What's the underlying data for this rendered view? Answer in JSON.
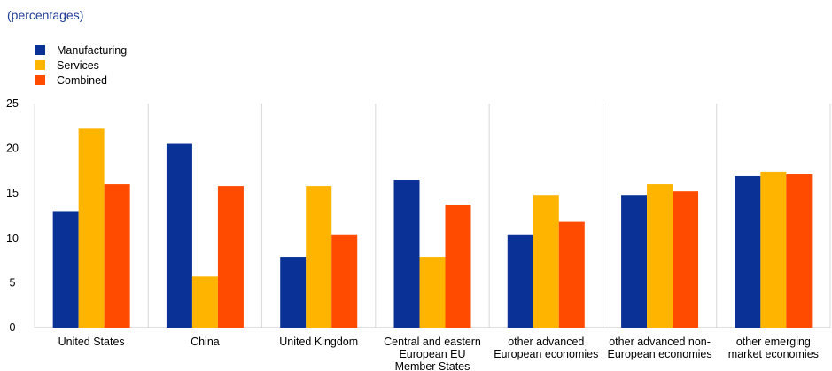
{
  "subtitle": "(percentages)",
  "chart_data": {
    "type": "bar",
    "title": "",
    "subtitle": "(percentages)",
    "xlabel": "",
    "ylabel": "",
    "ylim": [
      0,
      25
    ],
    "yticks": [
      "0",
      "5",
      "10",
      "15",
      "20",
      "25"
    ],
    "grid": "vertical separators",
    "legend_position": "top-left",
    "categories": [
      [
        "United States"
      ],
      [
        "China"
      ],
      [
        "United Kingdom"
      ],
      [
        "Central and eastern",
        "European EU",
        "Member States"
      ],
      [
        "other advanced",
        "European economies"
      ],
      [
        "other advanced non-",
        "European economies"
      ],
      [
        "other emerging",
        "market economies"
      ]
    ],
    "series": [
      {
        "name": "Manufacturing",
        "color": "#0a3296",
        "values": [
          13.0,
          20.5,
          7.9,
          16.5,
          10.4,
          14.8,
          16.9
        ]
      },
      {
        "name": "Services",
        "color": "#ffb400",
        "values": [
          22.2,
          5.7,
          15.8,
          7.9,
          14.8,
          16.0,
          17.4
        ]
      },
      {
        "name": "Combined",
        "color": "#ff4b00",
        "values": [
          16.0,
          15.8,
          10.4,
          13.7,
          11.8,
          15.2,
          17.1
        ]
      }
    ]
  }
}
